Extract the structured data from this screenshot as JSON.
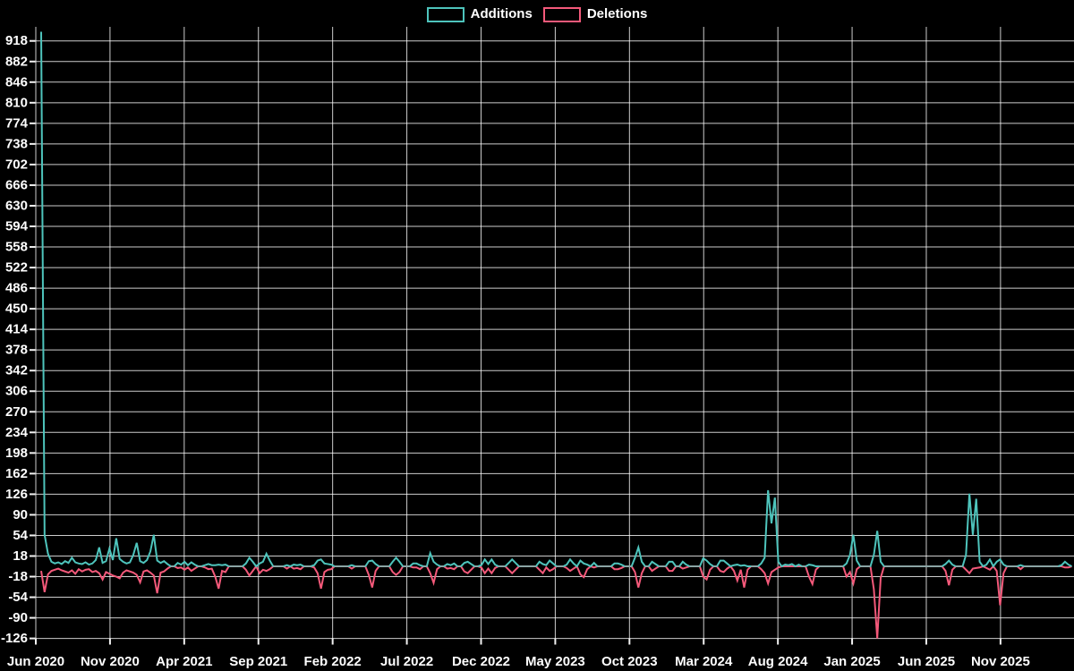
{
  "page": {
    "background": "#000000",
    "text_color": "#ffffff",
    "grid_color": "#ffffff",
    "zero_overlap_color": "#8ba4a4"
  },
  "legend": [
    {
      "label": "Additions",
      "color": "#4ec4bc"
    },
    {
      "label": "Deletions",
      "color": "#f4597a"
    }
  ],
  "chart_data": {
    "type": "line",
    "title": "",
    "xlabel": "",
    "ylabel": "",
    "x_unit": "week",
    "x_start_label": "Jun 2020",
    "x_end_label": "Nov 2025",
    "legend_position": "top-center",
    "grid": true,
    "ylim": [
      -134,
      943
    ],
    "y_ticks": [
      918,
      882,
      846,
      810,
      774,
      738,
      702,
      666,
      630,
      594,
      558,
      522,
      486,
      450,
      414,
      378,
      342,
      306,
      270,
      234,
      198,
      162,
      126,
      90,
      54,
      18,
      -18,
      -54,
      -90,
      -126
    ],
    "x_tick_labels": [
      "Jun 2020",
      "Nov 2020",
      "Apr 2021",
      "Sep 2021",
      "Feb 2022",
      "Jul 2022",
      "Dec 2022",
      "May 2023",
      "Oct 2023",
      "Mar 2024",
      "Aug 2024",
      "Jan 2025",
      "Jun 2025",
      "Nov 2025"
    ],
    "x_tick_month_offsets": [
      0,
      5,
      10,
      15,
      20,
      25,
      30,
      35,
      40,
      45,
      50,
      55,
      60,
      65
    ],
    "series": [
      {
        "name": "Additions",
        "color": "#4ec4bc",
        "values": [
          934,
          55,
          22,
          8,
          5,
          7,
          4,
          9,
          6,
          15,
          7,
          5,
          4,
          7,
          3,
          5,
          11,
          33,
          6,
          9,
          31,
          11,
          49,
          13,
          8,
          5,
          7,
          20,
          41,
          9,
          6,
          11,
          26,
          55,
          10,
          6,
          9,
          4,
          0,
          0,
          6,
          3,
          8,
          2,
          7,
          3,
          0,
          0,
          2,
          4,
          2,
          2,
          3,
          2,
          3,
          0,
          0,
          0,
          0,
          0,
          5,
          15,
          8,
          0,
          5,
          8,
          22,
          10,
          0,
          0,
          0,
          0,
          2,
          0,
          3,
          2,
          3,
          0,
          0,
          0,
          2,
          10,
          12,
          5,
          4,
          3,
          0,
          0,
          0,
          0,
          0,
          2,
          0,
          0,
          0,
          0,
          9,
          10,
          4,
          0,
          0,
          0,
          0,
          8,
          15,
          8,
          0,
          0,
          0,
          5,
          5,
          2,
          0,
          0,
          23,
          8,
          3,
          0,
          0,
          4,
          2,
          5,
          0,
          0,
          6,
          8,
          4,
          0,
          0,
          2,
          12,
          4,
          12,
          3,
          0,
          0,
          0,
          6,
          12,
          6,
          0,
          0,
          0,
          0,
          0,
          0,
          8,
          4,
          2,
          10,
          5,
          0,
          0,
          0,
          3,
          12,
          5,
          0,
          10,
          5,
          3,
          0,
          6,
          0,
          0,
          0,
          0,
          0,
          5,
          5,
          3,
          0,
          0,
          0,
          15,
          33,
          8,
          0,
          0,
          8,
          4,
          0,
          0,
          0,
          8,
          8,
          0,
          0,
          8,
          3,
          0,
          0,
          0,
          0,
          14,
          10,
          4,
          0,
          0,
          10,
          10,
          5,
          0,
          2,
          3,
          1,
          2,
          0,
          0,
          0,
          0,
          5,
          15,
          133,
          75,
          120,
          8,
          0,
          3,
          2,
          4,
          0,
          3,
          0,
          0,
          3,
          2,
          0,
          0,
          0,
          0,
          0,
          0,
          0,
          0,
          0,
          5,
          20,
          55,
          10,
          0,
          0,
          0,
          0,
          20,
          62,
          8,
          0,
          0,
          0,
          0,
          0,
          0,
          0,
          0,
          0,
          0,
          0,
          0,
          0,
          0,
          0,
          0,
          0,
          0,
          4,
          10,
          3,
          0,
          0,
          0,
          20,
          127,
          55,
          118,
          8,
          0,
          3,
          12,
          0,
          8,
          12,
          3,
          0,
          0,
          0,
          0,
          2,
          0,
          0,
          0,
          0,
          0,
          0,
          0,
          0,
          0,
          0,
          0,
          2,
          8,
          3,
          0
        ]
      },
      {
        "name": "Deletions",
        "color": "#f4597a",
        "values": [
          -8,
          -45,
          -14,
          -8,
          -6,
          -4,
          -7,
          -9,
          -11,
          -7,
          -13,
          -5,
          -9,
          -6,
          -5,
          -10,
          -8,
          -12,
          -23,
          -10,
          -13,
          -16,
          -18,
          -21,
          -11,
          -7,
          -9,
          -11,
          -15,
          -28,
          -9,
          -7,
          -11,
          -16,
          -47,
          -11,
          -9,
          -4,
          0,
          0,
          -3,
          -2,
          -6,
          -2,
          -8,
          -4,
          0,
          0,
          -2,
          -5,
          -4,
          -18,
          -39,
          -8,
          -10,
          0,
          0,
          0,
          0,
          0,
          -6,
          -16,
          -8,
          0,
          -12,
          -6,
          -8,
          -5,
          0,
          0,
          0,
          0,
          -4,
          0,
          -4,
          -3,
          -5,
          0,
          0,
          0,
          -2,
          -12,
          -39,
          -10,
          -6,
          -5,
          0,
          0,
          0,
          0,
          0,
          -4,
          0,
          0,
          0,
          0,
          -15,
          -37,
          -8,
          0,
          0,
          0,
          0,
          -10,
          -15,
          -10,
          0,
          0,
          0,
          -2,
          -2,
          -5,
          0,
          0,
          -12,
          -29,
          -5,
          0,
          0,
          -4,
          -3,
          -5,
          0,
          0,
          -9,
          -12,
          -6,
          0,
          0,
          -2,
          -12,
          -4,
          -12,
          -3,
          0,
          0,
          0,
          -6,
          -12,
          -6,
          0,
          0,
          0,
          0,
          0,
          0,
          -6,
          -12,
          -2,
          -8,
          -5,
          0,
          0,
          0,
          -3,
          -8,
          -4,
          0,
          -14,
          -19,
          -5,
          0,
          -2,
          0,
          0,
          0,
          0,
          0,
          -5,
          -5,
          -3,
          0,
          0,
          0,
          -10,
          -37,
          -12,
          0,
          0,
          -8,
          -4,
          0,
          0,
          0,
          -8,
          -8,
          0,
          0,
          -4,
          -2,
          0,
          0,
          0,
          0,
          -18,
          -23,
          -6,
          0,
          0,
          -8,
          -10,
          -4,
          0,
          -8,
          -25,
          -6,
          -37,
          -6,
          0,
          0,
          0,
          -5,
          -12,
          -30,
          -10,
          -6,
          -2,
          0,
          0,
          0,
          0,
          0,
          0,
          0,
          0,
          -18,
          -31,
          -6,
          0,
          0,
          0,
          0,
          0,
          0,
          0,
          0,
          -18,
          -10,
          -30,
          -5,
          0,
          0,
          0,
          0,
          -40,
          -126,
          -20,
          0,
          0,
          0,
          0,
          0,
          0,
          0,
          0,
          0,
          0,
          0,
          0,
          0,
          0,
          0,
          0,
          0,
          0,
          -8,
          -33,
          -6,
          0,
          0,
          0,
          -6,
          -12,
          -4,
          -3,
          -2,
          0,
          -3,
          -6,
          0,
          -8,
          -68,
          -12,
          0,
          0,
          0,
          0,
          -5,
          0,
          0,
          0,
          0,
          0,
          0,
          0,
          0,
          0,
          0,
          0,
          0,
          -2,
          -2,
          0
        ]
      }
    ]
  }
}
